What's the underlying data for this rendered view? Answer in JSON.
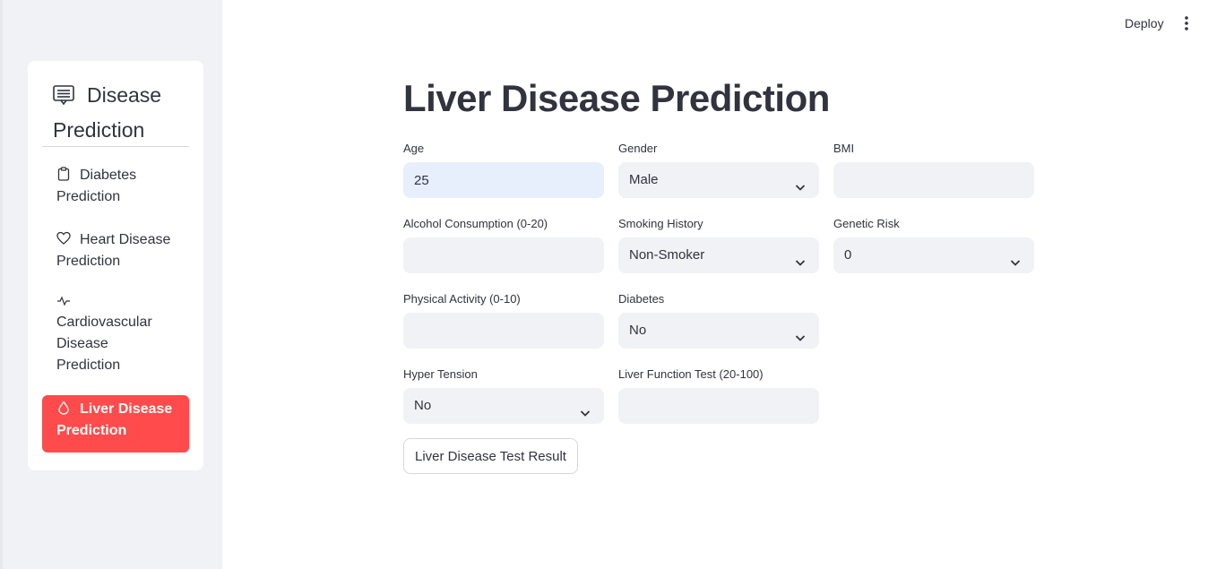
{
  "sidebar": {
    "title": "Disease Prediction",
    "items": [
      {
        "label": "Diabetes Prediction",
        "icon": "clipboard-icon"
      },
      {
        "label": "Heart Disease Prediction",
        "icon": "heart-icon"
      },
      {
        "label": "Cardiovascular Disease Prediction",
        "icon": "activity-icon"
      },
      {
        "label": "Liver Disease Prediction",
        "icon": "droplet-icon",
        "active": true
      }
    ]
  },
  "header": {
    "deploy_label": "Deploy"
  },
  "main": {
    "title": "Liver Disease Prediction",
    "fields": {
      "age": {
        "label": "Age",
        "value": "25"
      },
      "gender": {
        "label": "Gender",
        "value": "Male"
      },
      "bmi": {
        "label": "BMI",
        "value": ""
      },
      "alcohol": {
        "label": "Alcohol Consumption (0-20)",
        "value": ""
      },
      "smoking": {
        "label": "Smoking History",
        "value": "Non-Smoker"
      },
      "genetic": {
        "label": "Genetic Risk",
        "value": "0"
      },
      "activity": {
        "label": "Physical Activity (0-10)",
        "value": ""
      },
      "diabetes": {
        "label": "Diabetes",
        "value": "No"
      },
      "hypertension": {
        "label": "Hyper Tension",
        "value": "No"
      },
      "liver_test": {
        "label": "Liver Function Test (20-100)",
        "value": ""
      }
    },
    "submit_label": "Liver Disease Test Result"
  },
  "colors": {
    "accent": "#ff4b4b",
    "sidebar_bg": "#f0f2f6",
    "text": "#31333f",
    "input_bg": "#f0f2f6",
    "focused_input_bg": "#e8effc"
  }
}
